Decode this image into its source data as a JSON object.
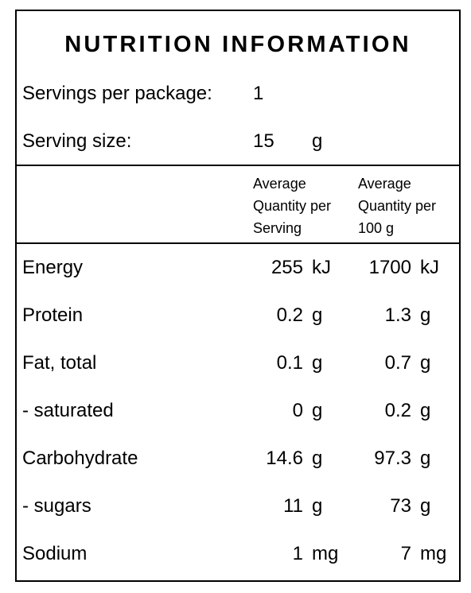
{
  "header": {
    "title": "NUTRITION INFORMATION"
  },
  "servings_per_package": {
    "label": "Servings per package:",
    "value": "1"
  },
  "serving_size": {
    "label": "Serving size:",
    "value": "15",
    "unit": "g"
  },
  "table": {
    "columns": [
      "Average Quantity per Serving",
      "Average Quantity per 100 g"
    ],
    "rows": [
      [
        "Energy",
        "255",
        "kJ",
        "1700",
        "kJ"
      ],
      [
        "Protein",
        "0.2",
        "g",
        "1.3",
        "g"
      ],
      [
        "Fat, total",
        "0.1",
        "g",
        "0.7",
        "g"
      ],
      [
        "- saturated",
        "0",
        "g",
        "0.2",
        "g"
      ],
      [
        "Carbohydrate",
        "14.6",
        "g",
        "97.3",
        "g"
      ],
      [
        "- sugars",
        "11",
        "g",
        "73",
        "g"
      ],
      [
        "Sodium",
        "1",
        "mg",
        "7",
        "mg"
      ]
    ]
  }
}
